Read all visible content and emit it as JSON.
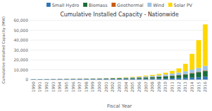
{
  "chart_data": {
    "type": "bar",
    "stacked": true,
    "grid": true,
    "legend": "top",
    "title": "Cumulative Installed Capacity - Nationwide",
    "x_label": "Fiscal Year",
    "y_label": "Cumulative Installed Capacity (MW)",
    "categories": [
      "1990",
      "1991",
      "1992",
      "1993",
      "1994",
      "1995",
      "1996",
      "1997",
      "1998",
      "1999",
      "2000",
      "2001",
      "2002",
      "2003",
      "2004",
      "2005",
      "2006",
      "2007",
      "2008",
      "2009",
      "2010",
      "2011",
      "2012",
      "2013",
      "2014",
      "2015",
      "2016"
    ],
    "series": [
      {
        "name": "Small Hydro",
        "color": "#2e75b6",
        "values": [
          500,
          520,
          540,
          560,
          580,
          600,
          620,
          640,
          660,
          680,
          700,
          720,
          750,
          780,
          820,
          860,
          900,
          960,
          1050,
          1150,
          1280,
          1450,
          1650,
          1900,
          2200,
          2600,
          3000
        ]
      },
      {
        "name": "Biomass",
        "color": "#1a6b3c",
        "values": [
          70,
          90,
          110,
          130,
          155,
          180,
          210,
          240,
          280,
          330,
          390,
          460,
          540,
          640,
          760,
          900,
          1060,
          1250,
          1480,
          1750,
          2080,
          2450,
          2900,
          3450,
          4100,
          4900,
          5800
        ]
      },
      {
        "name": "Geothermal",
        "color": "#c55a11",
        "values": [
          40,
          45,
          50,
          55,
          60,
          65,
          70,
          75,
          80,
          85,
          90,
          95,
          100,
          108,
          118,
          130,
          145,
          165,
          190,
          220,
          260,
          310,
          360,
          415,
          470,
          530,
          595
        ]
      },
      {
        "name": "Wind",
        "color": "#9dc3e6",
        "values": [
          10,
          15,
          20,
          28,
          38,
          50,
          65,
          85,
          110,
          145,
          190,
          250,
          325,
          415,
          520,
          645,
          790,
          960,
          1150,
          1380,
          1650,
          1970,
          2350,
          2800,
          3350,
          3950,
          4600
        ]
      },
      {
        "name": "Solar PV",
        "color": "#ffd700",
        "values": [
          5,
          8,
          12,
          16,
          22,
          28,
          38,
          50,
          65,
          85,
          110,
          145,
          190,
          250,
          330,
          430,
          570,
          750,
          1000,
          1320,
          1800,
          2700,
          4200,
          7500,
          16000,
          28000,
          42000
        ]
      }
    ],
    "ylim": [
      0,
      60000
    ],
    "yticks": [
      0,
      {
        "value": 10000,
        "label": "10,000"
      },
      {
        "value": 20000,
        "label": "20,000"
      },
      {
        "value": 30000,
        "label": "30,000"
      },
      {
        "value": 40000,
        "label": "40,000"
      },
      {
        "value": 50000,
        "label": "50,000"
      },
      {
        "value": 60000,
        "label": "60,000"
      }
    ]
  }
}
